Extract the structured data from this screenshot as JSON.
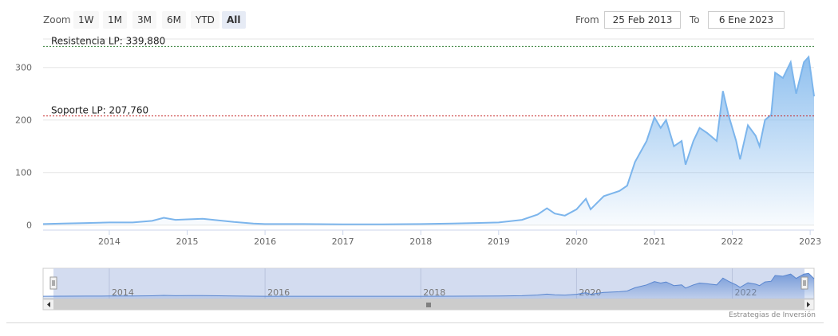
{
  "toolbar": {
    "zoom_label": "Zoom",
    "buttons": [
      "1W",
      "1M",
      "3M",
      "6M",
      "YTD",
      "All"
    ],
    "active": "All",
    "from_label": "From",
    "from_value": "25 Feb 2013",
    "to_label": "To",
    "to_value": "6 Ene 2023"
  },
  "credit": "Estrategias de Inversión",
  "chart_data": {
    "type": "area",
    "title": "",
    "xlabel": "",
    "ylabel": "",
    "x_ticks": [
      "2014",
      "2015",
      "2016",
      "2017",
      "2018",
      "2019",
      "2020",
      "2021",
      "2022",
      "2023"
    ],
    "y_ticks": [
      "0",
      "100",
      "200",
      "300"
    ],
    "ylim": [
      -8,
      345
    ],
    "xlim": [
      2013.15,
      2023.05
    ],
    "grid": true,
    "fill": "gradient",
    "color": "#7cb5ec",
    "series": [
      {
        "values": [
          [
            2013.15,
            2
          ],
          [
            2013.4,
            3
          ],
          [
            2013.7,
            4
          ],
          [
            2014.0,
            5
          ],
          [
            2014.3,
            5
          ],
          [
            2014.55,
            8
          ],
          [
            2014.7,
            14
          ],
          [
            2014.85,
            10
          ],
          [
            2015.0,
            11
          ],
          [
            2015.2,
            12
          ],
          [
            2015.4,
            9
          ],
          [
            2015.6,
            6
          ],
          [
            2015.85,
            3
          ],
          [
            2016.0,
            2
          ],
          [
            2016.5,
            2
          ],
          [
            2017.0,
            1.5
          ],
          [
            2017.5,
            1.5
          ],
          [
            2018.0,
            2
          ],
          [
            2018.4,
            3
          ],
          [
            2018.7,
            4
          ],
          [
            2019.0,
            5
          ],
          [
            2019.3,
            10
          ],
          [
            2019.5,
            20
          ],
          [
            2019.62,
            32
          ],
          [
            2019.72,
            22
          ],
          [
            2019.85,
            18
          ],
          [
            2020.0,
            30
          ],
          [
            2020.12,
            50
          ],
          [
            2020.18,
            30
          ],
          [
            2020.35,
            55
          ],
          [
            2020.55,
            65
          ],
          [
            2020.65,
            75
          ],
          [
            2020.75,
            120
          ],
          [
            2020.9,
            160
          ],
          [
            2021.0,
            205
          ],
          [
            2021.08,
            185
          ],
          [
            2021.15,
            200
          ],
          [
            2021.25,
            150
          ],
          [
            2021.35,
            160
          ],
          [
            2021.4,
            115
          ],
          [
            2021.5,
            160
          ],
          [
            2021.58,
            185
          ],
          [
            2021.68,
            175
          ],
          [
            2021.8,
            160
          ],
          [
            2021.88,
            255
          ],
          [
            2021.95,
            210
          ],
          [
            2022.05,
            160
          ],
          [
            2022.1,
            125
          ],
          [
            2022.2,
            190
          ],
          [
            2022.3,
            170
          ],
          [
            2022.35,
            150
          ],
          [
            2022.42,
            200
          ],
          [
            2022.5,
            210
          ],
          [
            2022.55,
            290
          ],
          [
            2022.65,
            280
          ],
          [
            2022.75,
            310
          ],
          [
            2022.82,
            250
          ],
          [
            2022.92,
            310
          ],
          [
            2022.98,
            320
          ],
          [
            2023.05,
            245
          ]
        ]
      }
    ],
    "plot_lines": [
      {
        "label": "Resistencia LP: 339,880",
        "value": 339.88,
        "color": "#2e7d32"
      },
      {
        "label": "Soporte LP: 207,760",
        "value": 207.76,
        "color": "#c62828"
      }
    ],
    "navigator": {
      "x_ticks": [
        "2014",
        "2016",
        "2018",
        "2020",
        "2022"
      ]
    }
  }
}
